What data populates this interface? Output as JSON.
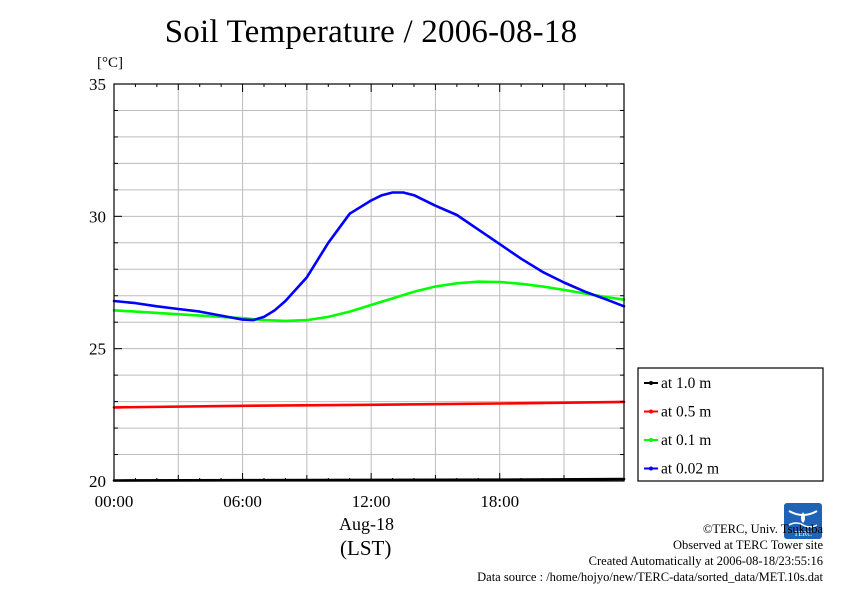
{
  "title": "Soil Temperature / 2006-08-18",
  "unit_label": "[°C]",
  "x_date_label": "Aug-18",
  "x_timezone_label": "(LST)",
  "credits": {
    "copyright": "©TERC, Univ. Tsukuba",
    "site": "Observed at TERC Tower site",
    "created": "Created Automatically at 2006-08-18/23:55:16",
    "source": "Data source : /home/hojyo/new/TERC-data/sorted_data/MET.10s.dat"
  },
  "logo_text": "TERC",
  "chart_data": {
    "type": "line",
    "title": "Soil Temperature / 2006-08-18",
    "ylabel": "[°C]",
    "xlabel": "Aug-18 (LST)",
    "xlim": [
      0,
      23.8
    ],
    "ylim": [
      20,
      35
    ],
    "y_ticks": [
      20,
      25,
      30,
      35
    ],
    "y_tick_labels": [
      "20",
      "25",
      "30",
      "35"
    ],
    "x_ticks": [
      0,
      6,
      12,
      18
    ],
    "x_tick_labels": [
      "00:00",
      "06:00",
      "12:00",
      "18:00"
    ],
    "grid": true,
    "legend_position": "right",
    "series": [
      {
        "name": "at 1.0 m",
        "color": "#000000",
        "x": [
          0,
          6,
          12,
          18,
          23.8
        ],
        "y": [
          20.02,
          20.03,
          20.04,
          20.05,
          20.07
        ]
      },
      {
        "name": "at 0.5 m",
        "color": "#ff0000",
        "x": [
          0,
          6,
          12,
          18,
          23.8
        ],
        "y": [
          22.78,
          22.84,
          22.88,
          22.93,
          22.99
        ]
      },
      {
        "name": "at 0.1 m",
        "color": "#00ff00",
        "x": [
          0,
          2,
          4,
          6,
          7,
          8,
          9,
          10,
          11,
          12,
          13,
          14,
          15,
          16,
          17,
          18,
          19,
          20,
          21,
          22,
          23,
          23.8
        ],
        "y": [
          26.45,
          26.35,
          26.25,
          26.15,
          26.08,
          26.05,
          26.08,
          26.2,
          26.4,
          26.65,
          26.9,
          27.15,
          27.35,
          27.47,
          27.53,
          27.52,
          27.45,
          27.35,
          27.22,
          27.08,
          26.95,
          26.85
        ]
      },
      {
        "name": "at 0.02 m",
        "color": "#0000ff",
        "x": [
          0,
          1,
          2,
          3,
          4,
          5,
          6,
          6.5,
          7,
          7.5,
          8,
          9,
          10,
          11,
          12,
          12.5,
          13,
          13.5,
          14,
          15,
          16,
          17,
          18,
          19,
          20,
          21,
          22,
          23,
          23.8
        ],
        "y": [
          26.8,
          26.72,
          26.6,
          26.5,
          26.4,
          26.25,
          26.1,
          26.08,
          26.2,
          26.45,
          26.8,
          27.7,
          29.0,
          30.1,
          30.6,
          30.8,
          30.9,
          30.9,
          30.8,
          30.4,
          30.05,
          29.5,
          28.95,
          28.4,
          27.9,
          27.5,
          27.15,
          26.85,
          26.6
        ]
      }
    ]
  }
}
